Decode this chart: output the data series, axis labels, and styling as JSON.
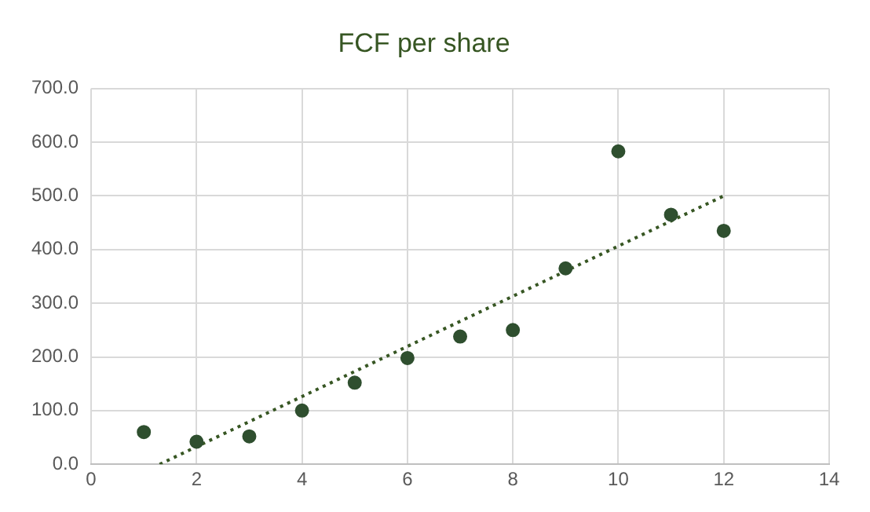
{
  "chart_data": {
    "type": "scatter",
    "title": "FCF per share",
    "series": [
      {
        "type": "scatter",
        "color": "#2f4f2f",
        "x": [
          1,
          2,
          3,
          4,
          5,
          6,
          7,
          8,
          9,
          10,
          11,
          12
        ],
        "values": [
          60,
          42,
          52,
          100,
          152,
          198,
          238,
          250,
          365,
          583,
          465,
          435
        ],
        "marker": "circle"
      },
      {
        "type": "line",
        "color": "#375623",
        "x": [
          1.3,
          12
        ],
        "values": [
          0,
          500
        ],
        "line_style": "dotted",
        "marker": "none"
      }
    ],
    "xlim": [
      0,
      14
    ],
    "xticks": [
      0,
      2,
      4,
      6,
      8,
      10,
      12,
      14
    ],
    "ylim": [
      0,
      700
    ],
    "yticks": [
      {
        "value": 0,
        "label": "0.0"
      },
      {
        "value": 100,
        "label": "100.0"
      },
      {
        "value": 200,
        "label": "200.0"
      },
      {
        "value": 300,
        "label": "300.0"
      },
      {
        "value": 400,
        "label": "400.0"
      },
      {
        "value": 500,
        "label": "500.0"
      },
      {
        "value": 600,
        "label": "600.0"
      },
      {
        "value": 700,
        "label": "700.0"
      }
    ],
    "grid": true,
    "legend": false
  }
}
